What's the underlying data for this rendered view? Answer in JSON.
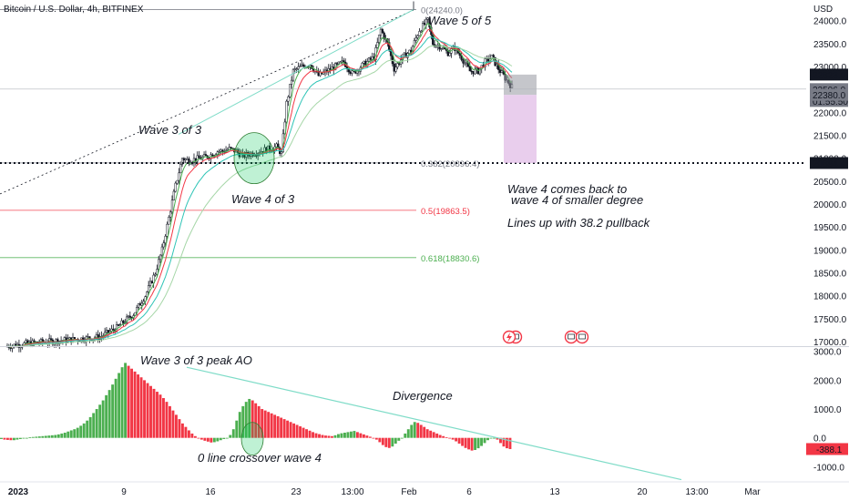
{
  "chart_data": {
    "type": "candlestick",
    "title": "Bitcoin / U.S. Dollar, 4h, BITFINEX",
    "currency": "USD",
    "price_axis": {
      "ylim": [
        16900,
        24450
      ],
      "ticks": [
        "17000.0",
        "17500.0",
        "18000.0",
        "18500.0",
        "19000.0",
        "19500.0",
        "20000.0",
        "20500.0",
        "21000.0",
        "21500.0",
        "22000.0",
        "22500.0",
        "23000.0",
        "23500.0",
        "24000.0"
      ]
    },
    "osc_axis": {
      "ylim": [
        -1400,
        3150
      ],
      "ticks": [
        "3000.0",
        "2000.0",
        "1000.0",
        "0.0",
        "-1000.0"
      ]
    },
    "time_axis": {
      "ticks": [
        "2023",
        "9",
        "16",
        "23",
        "13:00",
        "Feb",
        "6",
        "13",
        "20",
        "13:00",
        "Mar"
      ]
    },
    "price_labels": [
      {
        "text": "22823.0",
        "bg": "#131722",
        "fg": "#ffffff"
      },
      {
        "text": "22506.0",
        "bg": "#787b86",
        "fg": "#ffffff"
      },
      {
        "text": "01:55:50",
        "bg": "#787b86",
        "fg": "#ffffff"
      },
      {
        "text": "22380.0",
        "bg": "#787b86",
        "fg": "#ffffff"
      },
      {
        "text": "20894.4",
        "bg": "#131722",
        "fg": "#ffffff"
      }
    ],
    "ao_label": {
      "text": "-388.1",
      "bg": "#f23645",
      "fg": "#ffffff"
    },
    "fib_levels": [
      {
        "label": "0(24240.0)",
        "price": 24240.0,
        "color": "#787b86"
      },
      {
        "label": "0.382(20896.4)",
        "price": 20896.4,
        "color": "#787b86"
      },
      {
        "label": "0.5(19863.5)",
        "price": 19863.5,
        "color": "#f23645"
      },
      {
        "label": "0.618(18830.6)",
        "price": 18830.6,
        "color": "#4caf50"
      }
    ],
    "horizontal_line": {
      "price": 20894.4,
      "style": "dotted"
    },
    "annotations": {
      "wave5": "Wave 5 of 5",
      "wave3": "Wave 3 of 3",
      "wave4": "Wave 4 of 3",
      "note1": "Wave 4 comes back to",
      "note2": "wave 4 of smaller degree",
      "note3": "Lines up with 38.2 pullback",
      "ao_peak": "Wave 3 of 3 peak AO",
      "divergence": "Divergence",
      "crossover": "0 line crossover wave 4"
    },
    "price_path": [
      [
        0,
        16900
      ],
      [
        10,
        16950
      ],
      [
        25,
        17000
      ],
      [
        40,
        17050
      ],
      [
        55,
        17100
      ],
      [
        65,
        17300
      ],
      [
        75,
        17600
      ],
      [
        82,
        18000
      ],
      [
        88,
        18500
      ],
      [
        92,
        19000
      ],
      [
        96,
        19700
      ],
      [
        100,
        20400
      ],
      [
        104,
        21000
      ],
      [
        108,
        20950
      ],
      [
        115,
        21000
      ],
      [
        120,
        21050
      ],
      [
        125,
        21150
      ],
      [
        128,
        21150
      ],
      [
        132,
        21200
      ],
      [
        136,
        21150
      ],
      [
        140,
        21050
      ],
      [
        145,
        21100
      ],
      [
        150,
        21150
      ],
      [
        155,
        21200
      ],
      [
        160,
        21250
      ],
      [
        163,
        21100
      ],
      [
        166,
        22200
      ],
      [
        170,
        22900
      ],
      [
        175,
        23000
      ],
      [
        180,
        23050
      ],
      [
        185,
        22800
      ],
      [
        190,
        22900
      ],
      [
        195,
        23000
      ],
      [
        200,
        23100
      ],
      [
        205,
        22850
      ],
      [
        212,
        23050
      ],
      [
        218,
        23200
      ],
      [
        222,
        23800
      ],
      [
        226,
        23500
      ],
      [
        230,
        22950
      ],
      [
        235,
        23200
      ],
      [
        240,
        23350
      ],
      [
        245,
        23800
      ],
      [
        250,
        24000
      ],
      [
        253,
        23500
      ],
      [
        257,
        23450
      ],
      [
        262,
        23300
      ],
      [
        266,
        23400
      ],
      [
        270,
        23200
      ],
      [
        275,
        22900
      ],
      [
        280,
        22900
      ],
      [
        284,
        23100
      ],
      [
        288,
        23200
      ],
      [
        292,
        22950
      ],
      [
        296,
        22750
      ],
      [
        300,
        22550
      ]
    ],
    "ao_values": [
      -40,
      -60,
      -70,
      -80,
      -80,
      -60,
      -40,
      -20,
      0,
      20,
      30,
      40,
      50,
      60,
      70,
      80,
      90,
      100,
      120,
      150,
      180,
      220,
      260,
      300,
      350,
      420,
      500,
      600,
      720,
      860,
      1000,
      1150,
      1300,
      1480,
      1660,
      1850,
      2050,
      2250,
      2450,
      2600,
      2500,
      2400,
      2300,
      2200,
      2100,
      2000,
      1900,
      1800,
      1700,
      1600,
      1500,
      1380,
      1250,
      1100,
      950,
      800,
      650,
      500,
      380,
      260,
      150,
      60,
      -20,
      -60,
      -100,
      -130,
      -160,
      -150,
      -120,
      -80,
      -40,
      0,
      100,
      300,
      600,
      900,
      1100,
      1250,
      1350,
      1300,
      1200,
      1100,
      1000,
      950,
      900,
      850,
      800,
      750,
      700,
      650,
      600,
      550,
      500,
      450,
      400,
      350,
      300,
      250,
      200,
      160,
      130,
      100,
      80,
      70,
      60,
      90,
      130,
      160,
      180,
      200,
      220,
      240,
      200,
      160,
      120,
      80,
      40,
      0,
      -60,
      -150,
      -250,
      -320,
      -350,
      -300,
      -200,
      -100,
      0,
      150,
      300,
      450,
      550,
      520,
      450,
      380,
      300,
      250,
      200,
      150,
      100,
      60,
      20,
      -20,
      -60,
      -120,
      -200,
      -280,
      -350,
      -400,
      -440,
      -420,
      -360,
      -280,
      -180,
      -80,
      -20,
      0,
      -60,
      -180,
      -300,
      -360,
      -388
    ]
  }
}
